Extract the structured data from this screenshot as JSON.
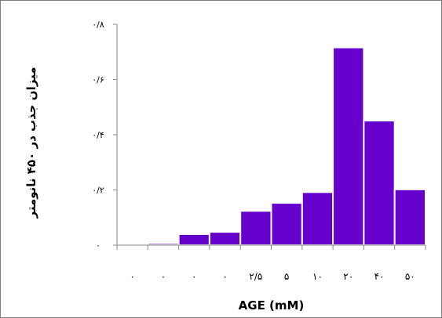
{
  "chart_data": {
    "type": "bar",
    "title": "",
    "xlabel": "AGE (mM)",
    "ylabel": "میزان جذب در ۴۵۰ نانومتر",
    "categories": [
      "۰",
      "۰",
      "۰",
      "۰",
      "۲/۵",
      "۵",
      "۱۰",
      "۲۰",
      "۴۰",
      "۵۰"
    ],
    "values": [
      0.005,
      0.007,
      0.04,
      0.048,
      0.124,
      0.153,
      0.192,
      0.716,
      0.451,
      0.202
    ],
    "ylim": [
      0,
      0.8
    ],
    "yticks": [
      0,
      0.2,
      0.4,
      0.6,
      0.8
    ],
    "ytick_labels": [
      "۰",
      "۰/۲",
      "۰/۴",
      "۰/۶",
      "۰/۸"
    ],
    "bar_color": "#6600cc",
    "bar_edge_color": "#ffffff",
    "grid": false,
    "legend": false
  }
}
